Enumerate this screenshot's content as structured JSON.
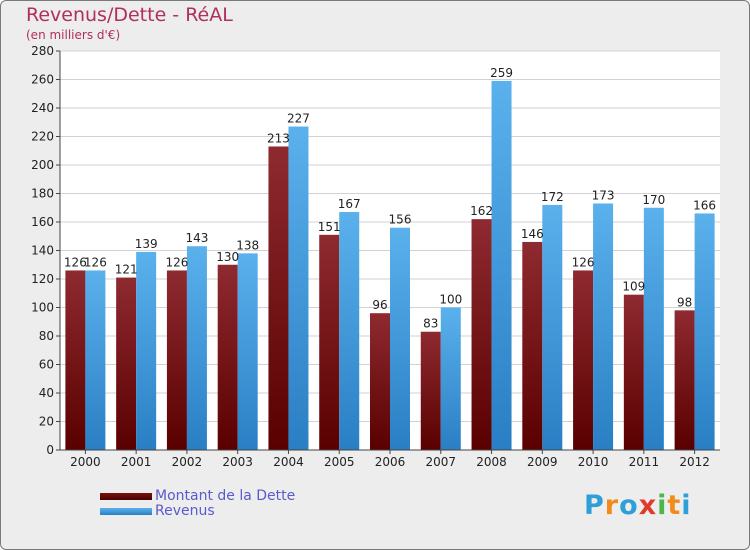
{
  "chart_data": {
    "type": "bar",
    "title": "Revenus/Dette - RéAL",
    "subtitle": "(en milliers d'€)",
    "xlabel": "",
    "ylabel": "",
    "ylim": [
      0,
      280
    ],
    "yticks": [
      0,
      20,
      40,
      60,
      80,
      100,
      120,
      140,
      160,
      180,
      200,
      220,
      240,
      260,
      280
    ],
    "grid": true,
    "legend_position": "bottom-left",
    "categories": [
      "2000",
      "2001",
      "2002",
      "2003",
      "2004",
      "2005",
      "2006",
      "2007",
      "2008",
      "2009",
      "2010",
      "2011",
      "2012"
    ],
    "series": [
      {
        "name": "Montant de la Dette",
        "color": "#8b1a1a",
        "values": [
          126,
          121,
          126,
          130,
          213,
          151,
          96,
          83,
          162,
          146,
          126,
          109,
          98
        ]
      },
      {
        "name": "Revenus",
        "color": "#4aa3e3",
        "values": [
          126,
          139,
          143,
          138,
          227,
          167,
          156,
          100,
          259,
          172,
          173,
          170,
          166
        ]
      }
    ]
  },
  "logo": {
    "text": "Proxiti",
    "letters": [
      "P",
      "r",
      "o",
      "x",
      "i",
      "t",
      "i"
    ],
    "colors": [
      "#2f9fd8",
      "#f28b1c",
      "#2f9fd8",
      "#e03b2a",
      "#49b849",
      "#f28b1c",
      "#2f9fd8"
    ]
  }
}
